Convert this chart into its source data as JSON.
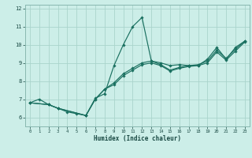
{
  "xlabel": "Humidex (Indice chaleur)",
  "background_color": "#cceee8",
  "line_color": "#1a7060",
  "grid_color": "#aad4cc",
  "xlim": [
    -0.5,
    23.5
  ],
  "ylim": [
    5.5,
    12.2
  ],
  "yticks": [
    6,
    7,
    8,
    9,
    10,
    11,
    12
  ],
  "xticks": [
    0,
    1,
    2,
    3,
    4,
    5,
    6,
    7,
    8,
    9,
    10,
    11,
    12,
    13,
    14,
    15,
    16,
    17,
    18,
    19,
    20,
    21,
    22,
    23
  ],
  "lines": [
    {
      "x": [
        0,
        1,
        2,
        3,
        4,
        5,
        6,
        7,
        8,
        9,
        10,
        11,
        12,
        13,
        14,
        15,
        16,
        17,
        18,
        19,
        20,
        21,
        22,
        23
      ],
      "y": [
        6.8,
        7.0,
        6.7,
        6.5,
        6.3,
        6.2,
        6.1,
        7.05,
        7.3,
        8.85,
        10.0,
        11.0,
        11.5,
        9.1,
        9.0,
        8.85,
        8.9,
        8.85,
        8.85,
        9.2,
        9.85,
        9.2,
        9.85,
        10.2
      ]
    },
    {
      "x": [
        0,
        2,
        3,
        6,
        7,
        8,
        9,
        10,
        11,
        12,
        13,
        14,
        15,
        16,
        17,
        18,
        19,
        20,
        21,
        22,
        23
      ],
      "y": [
        6.8,
        6.7,
        6.5,
        6.1,
        7.0,
        7.55,
        7.8,
        8.3,
        8.6,
        8.9,
        9.0,
        8.85,
        8.55,
        8.7,
        8.8,
        8.85,
        9.0,
        9.6,
        9.15,
        9.65,
        10.15
      ]
    },
    {
      "x": [
        0,
        2,
        3,
        6,
        7,
        8,
        9,
        10,
        11,
        12,
        13,
        14,
        15,
        16,
        17,
        18,
        19,
        20,
        21,
        22,
        23
      ],
      "y": [
        6.8,
        6.7,
        6.5,
        6.1,
        7.0,
        7.55,
        7.9,
        8.4,
        8.7,
        9.0,
        9.1,
        8.9,
        8.6,
        8.75,
        8.85,
        8.9,
        9.1,
        9.7,
        9.25,
        9.75,
        10.2
      ]
    }
  ]
}
